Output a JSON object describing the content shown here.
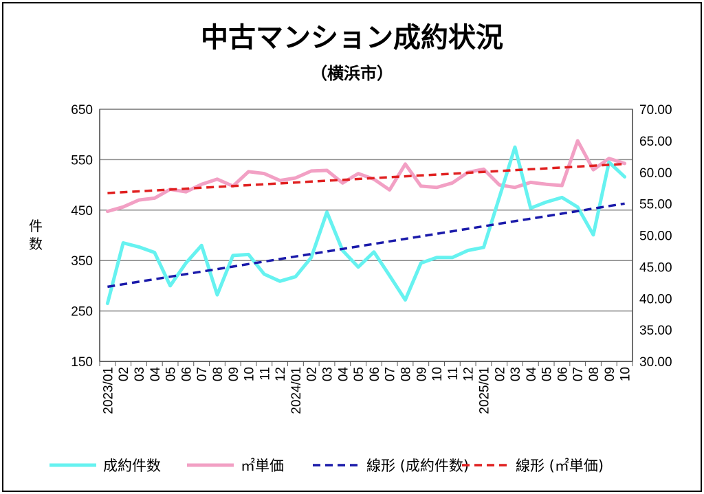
{
  "chart_data": {
    "type": "line",
    "title": "中古マンション成約状況",
    "subtitle": "（横浜市）",
    "ylabel": "件数",
    "y_left": {
      "range": [
        150,
        650
      ],
      "ticks": [
        "650",
        "550",
        "450",
        "350",
        "250",
        "150"
      ]
    },
    "y_right": {
      "range": [
        30,
        70
      ],
      "ticks": [
        "70.00",
        "65.00",
        "60.00",
        "55.00",
        "50.00",
        "45.00",
        "40.00",
        "35.00",
        "30.00"
      ]
    },
    "grid": true,
    "legend_position": "bottom",
    "categories": [
      "2023/01",
      "02",
      "03",
      "04",
      "05",
      "06",
      "07",
      "08",
      "09",
      "10",
      "11",
      "12",
      "2024/01",
      "02",
      "03",
      "04",
      "05",
      "06",
      "07",
      "08",
      "09",
      "10",
      "11",
      "12",
      "2025/01",
      "02",
      "03",
      "04",
      "05",
      "06",
      "07",
      "08",
      "09",
      "10"
    ],
    "series": [
      {
        "name": "成約件数",
        "axis": "left",
        "color": "#66f2f0",
        "style": "solid",
        "values": [
          265,
          385,
          377,
          366,
          300,
          345,
          380,
          282,
          360,
          362,
          323,
          309,
          318,
          356,
          446,
          370,
          337,
          367,
          320,
          272,
          345,
          356,
          356,
          370,
          376,
          475,
          575,
          454,
          466,
          475,
          456,
          401,
          545,
          516
        ]
      },
      {
        "name": "㎡単価",
        "axis": "right",
        "color": "#f2a0c4",
        "style": "solid",
        "values": [
          53.8,
          54.5,
          55.6,
          55.9,
          57.3,
          56.9,
          58.1,
          58.9,
          57.8,
          60.1,
          59.8,
          58.7,
          59.1,
          60.2,
          60.3,
          58.3,
          59.8,
          58.9,
          57.2,
          61.3,
          57.8,
          57.6,
          58.3,
          60.0,
          60.5,
          58.0,
          57.6,
          58.4,
          58.1,
          57.9,
          65.0,
          60.4,
          62.2,
          61.4
        ]
      },
      {
        "name": "線形 (成約件数)",
        "axis": "left",
        "color": "#1a1aaa",
        "style": "dashed",
        "values": [
          298,
          303,
          308,
          313,
          318,
          323,
          328,
          333,
          338,
          343,
          348,
          353,
          358,
          363,
          368,
          373,
          378,
          383,
          388,
          393,
          398,
          403,
          408,
          413,
          418,
          423,
          428,
          433,
          438,
          443,
          448,
          453,
          458,
          463
        ]
      },
      {
        "name": "線形 (㎡単価)",
        "axis": "right",
        "color": "#e02020",
        "style": "dashed",
        "values": [
          56.7,
          56.84,
          56.98,
          57.12,
          57.26,
          57.4,
          57.54,
          57.68,
          57.82,
          57.96,
          58.1,
          58.24,
          58.38,
          58.52,
          58.66,
          58.8,
          58.94,
          59.08,
          59.22,
          59.36,
          59.5,
          59.64,
          59.78,
          59.92,
          60.06,
          60.2,
          60.34,
          60.48,
          60.62,
          60.76,
          60.9,
          61.04,
          61.18,
          61.32
        ]
      }
    ]
  }
}
